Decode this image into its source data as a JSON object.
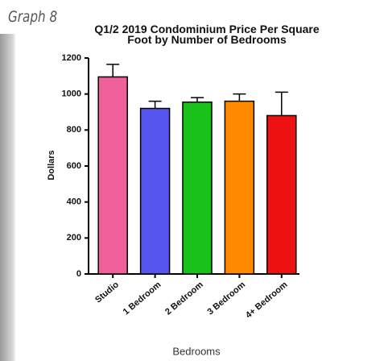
{
  "header": {
    "label": "Graph 8"
  },
  "chart_data": {
    "type": "bar",
    "title": "Q1/2 2019 Condominium Price Per Square Foot by Number of Bedrooms",
    "x_label": "Bedrooms",
    "y_label": "Dollars",
    "categories": [
      "Studio",
      "1 Bedroom",
      "2 Bedroom",
      "3 Bedroom",
      "4+ Bedroom"
    ],
    "values": [
      1095,
      920,
      955,
      960,
      880
    ],
    "errors": [
      70,
      40,
      25,
      40,
      130
    ],
    "colors": [
      "#f0609a",
      "#5656ee",
      "#18c218",
      "#ff8a00",
      "#ee1111"
    ],
    "ylim": [
      0,
      1200
    ],
    "yticks": [
      0,
      200,
      400,
      600,
      800,
      1000,
      1200
    ],
    "grid": false
  }
}
